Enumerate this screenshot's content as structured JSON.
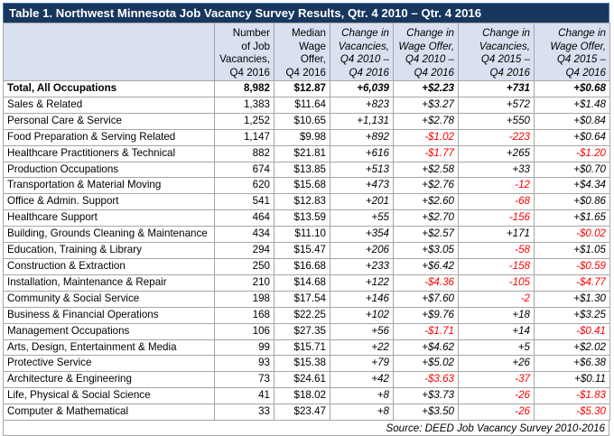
{
  "title": "Table 1. Northwest Minnesota Job Vacancy Survey Results, Qtr. 4 2010 – Qtr. 4 2016",
  "headers": [
    "",
    [
      "Number",
      "of Job",
      "Vacancies,",
      "Q4 2016"
    ],
    [
      "Median",
      "Wage",
      "Offer,",
      "Q4 2016"
    ],
    [
      "Change in",
      "Vacancies,",
      "Q4 2010 –",
      "Q4 2016"
    ],
    [
      "Change in",
      "Wage Offer,",
      "Q4 2010 –",
      "Q4 2016"
    ],
    [
      "Change in",
      "Vacancies,",
      "Q4 2015 –",
      "Q4 2016"
    ],
    [
      "Change in",
      "Wage Offer,",
      "Q4 2015 –",
      "Q4 2016"
    ]
  ],
  "rows": [
    [
      "Total, All Occupations",
      "8,982",
      "$12.87",
      "+6,039",
      "+$2.23",
      "+731",
      "+$0.68"
    ],
    [
      "Sales & Related",
      "1,383",
      "$11.64",
      "+823",
      "+$3.27",
      "+572",
      "+$1.48"
    ],
    [
      "Personal Care & Service",
      "1,252",
      "$10.65",
      "+1,131",
      "+$2.78",
      "+550",
      "+$0.84"
    ],
    [
      "Food Preparation & Serving Related",
      "1,147",
      "$9.98",
      "+892",
      "-$1.02",
      "-223",
      "+$0.64"
    ],
    [
      "Healthcare Practitioners & Technical",
      "882",
      "$21.81",
      "+616",
      "-$1.77",
      "+265",
      "-$1.20"
    ],
    [
      "Production Occupations",
      "674",
      "$13.85",
      "+513",
      "+$2.58",
      "+33",
      "+$0.70"
    ],
    [
      "Transportation & Material Moving",
      "620",
      "$15.68",
      "+473",
      "+$2.76",
      "-12",
      "+$4.34"
    ],
    [
      "Office & Admin. Support",
      "541",
      "$12.83",
      "+201",
      "+$2.60",
      "-68",
      "+$0.86"
    ],
    [
      "Healthcare Support",
      "464",
      "$13.59",
      "+55",
      "+$2.70",
      "-156",
      "+$1.65"
    ],
    [
      "Building, Grounds Cleaning & Maintenance",
      "434",
      "$11.10",
      "+354",
      "+$2.57",
      "+171",
      "-$0.02"
    ],
    [
      "Education, Training & Library",
      "294",
      "$15.47",
      "+206",
      "+$3.05",
      "-58",
      "+$1.05"
    ],
    [
      "Construction & Extraction",
      "250",
      "$16.68",
      "+233",
      "+$6.42",
      "-158",
      "-$0.59"
    ],
    [
      "Installation, Maintenance & Repair",
      "210",
      "$14.68",
      "+122",
      "-$4.36",
      "-105",
      "-$4.77"
    ],
    [
      "Community & Social Service",
      "198",
      "$17.54",
      "+146",
      "+$7.60",
      "-2",
      "+$1.30"
    ],
    [
      "Business & Financial Operations",
      "168",
      "$22.25",
      "+102",
      "+$9.76",
      "+18",
      "+$3.25"
    ],
    [
      "Management Occupations",
      "106",
      "$27.35",
      "+56",
      "-$1.71",
      "+14",
      "-$0.41"
    ],
    [
      "Arts, Design, Entertainment & Media",
      "99",
      "$15.71",
      "+22",
      "+$4.62",
      "+5",
      "+$2.02"
    ],
    [
      "Protective Service",
      "93",
      "$15.38",
      "+79",
      "+$5.02",
      "+26",
      "+$6.38"
    ],
    [
      "Architecture & Engineering",
      "73",
      "$24.61",
      "+42",
      "-$3.63",
      "-37",
      "+$0.11"
    ],
    [
      "Life, Physical & Social Science",
      "41",
      "$18.02",
      "+8",
      "+$3.73",
      "-26",
      "-$1.83"
    ],
    [
      "Computer & Mathematical",
      "33",
      "$23.47",
      "+8",
      "+$3.50",
      "-26",
      "-$5.30"
    ]
  ],
  "source": "Source: DEED Job Vacancy Survey 2010-2016",
  "colors": {
    "title_bg": "#17375e",
    "header_bg": "#d9e1f0",
    "negative": "#ff0000"
  }
}
